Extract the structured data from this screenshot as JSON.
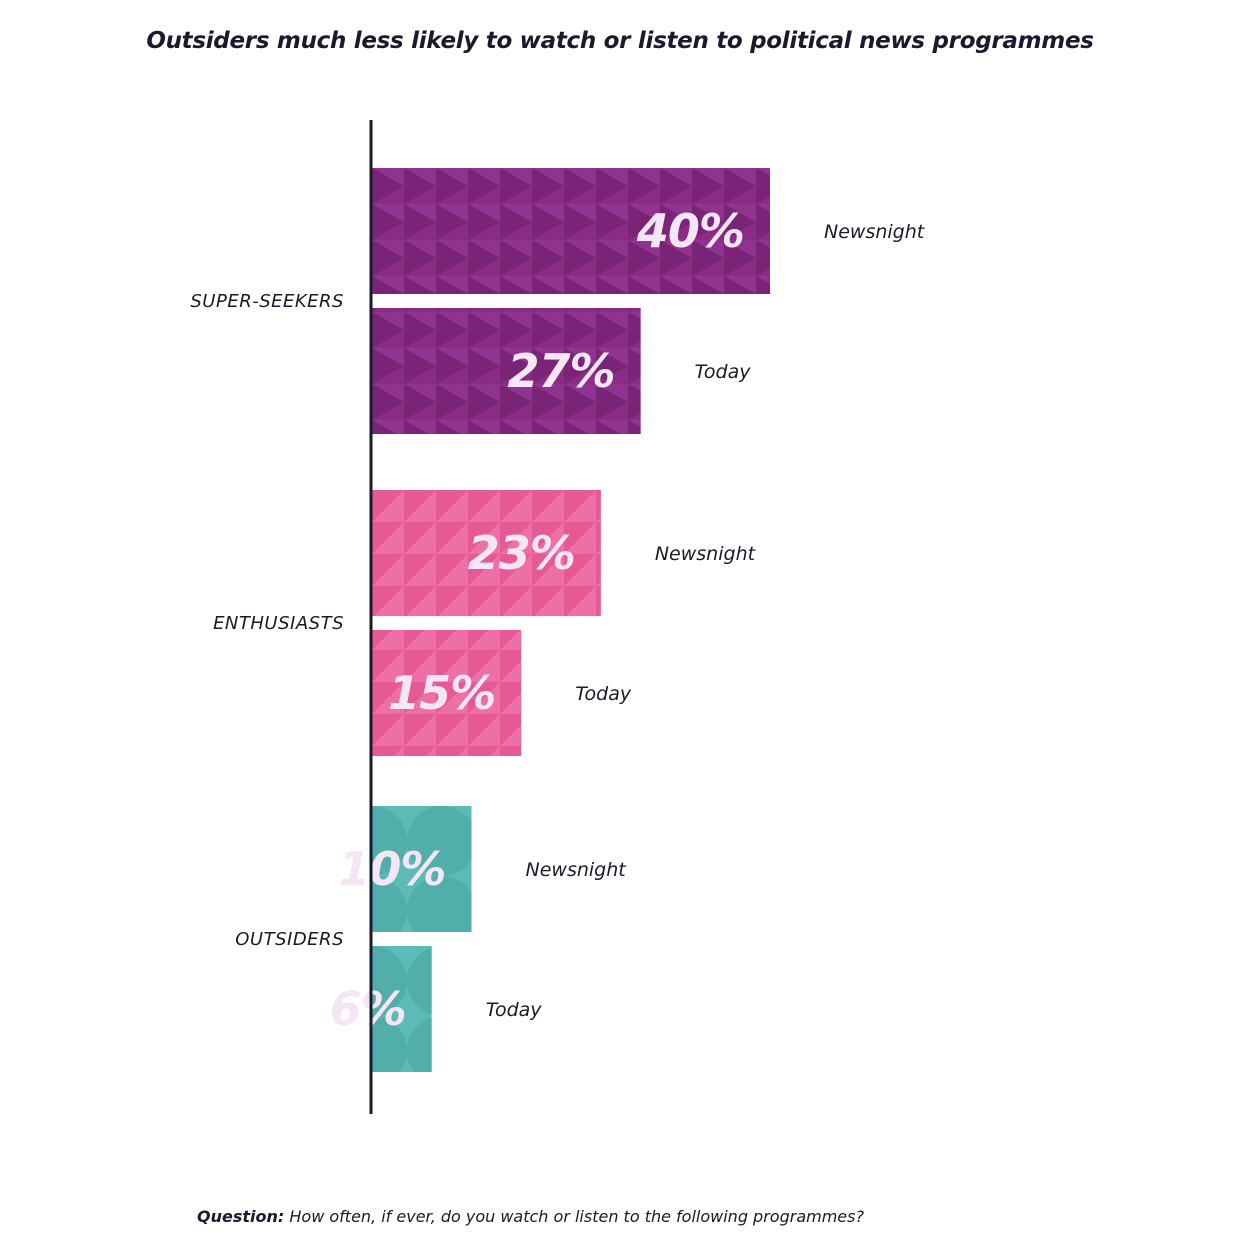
{
  "chart_data": {
    "type": "bar",
    "orientation": "horizontal",
    "title": "Outsiders much less likely to watch or listen to political news programmes",
    "categories": [
      "SUPER-SEEKERS",
      "ENTHUSIASTS",
      "OUTSIDERS"
    ],
    "series": [
      {
        "name": "Newsnight",
        "values": [
          40,
          23,
          10
        ]
      },
      {
        "name": "Today",
        "values": [
          27,
          15,
          6
        ]
      }
    ],
    "value_suffix": "%",
    "xlim": [
      0,
      40
    ],
    "grid": false,
    "legend": "none",
    "colors": {
      "SUPER-SEEKERS": "#8a2c86",
      "ENTHUSIASTS": "#ec659f",
      "OUTSIDERS": "#55b2ae",
      "axis": "#1a1a2e"
    }
  },
  "footnote": {
    "label": "Question:",
    "text": "How often, if ever, do you watch or listen to the following programmes?"
  }
}
